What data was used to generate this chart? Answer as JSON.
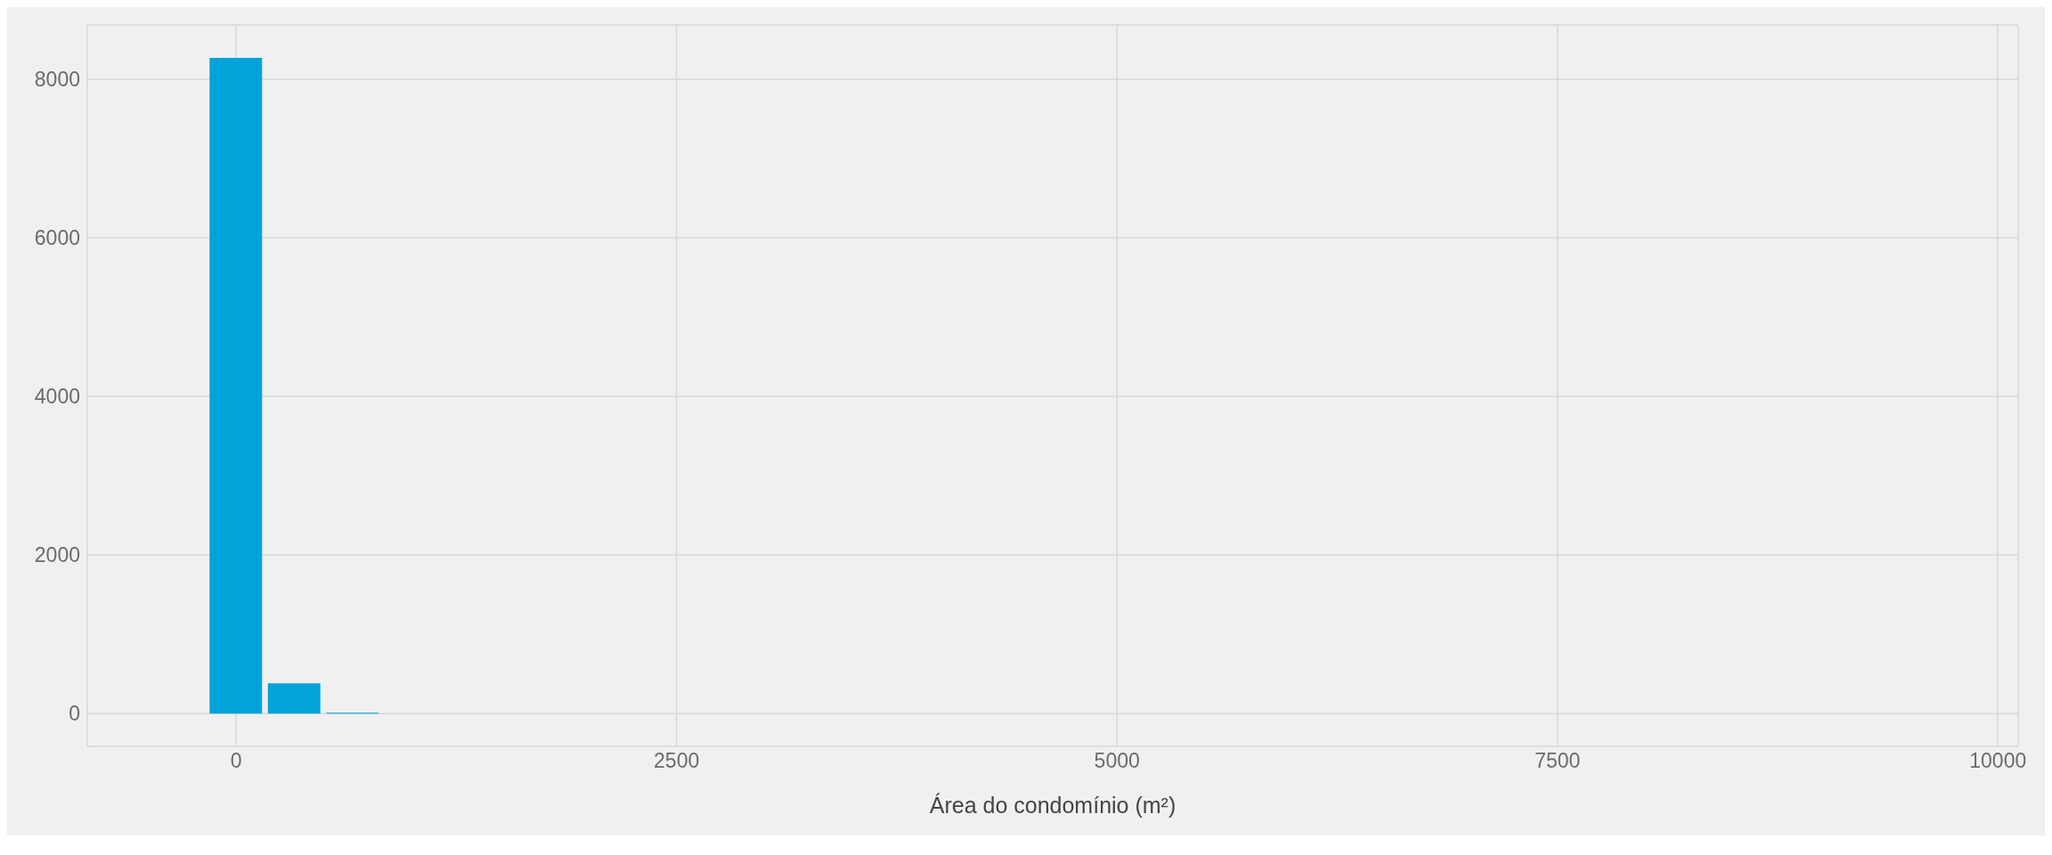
{
  "chart_data": {
    "type": "histogram",
    "xlabel": "Área do condomínio (m²)",
    "color": "#00a3da",
    "bins": [
      -166,
      165,
      496,
      827,
      1158,
      1489,
      1820,
      2151,
      2482,
      2813,
      3144,
      3475,
      3806,
      4137,
      4468,
      4799,
      5130,
      5461,
      5792,
      6123,
      6454,
      6785,
      7116,
      7447,
      7778,
      8109,
      8440,
      8771,
      9102,
      9433,
      9764
    ],
    "values": [
      8270,
      380,
      10,
      0,
      0,
      0,
      0,
      0,
      0,
      0,
      0,
      0,
      0,
      0,
      0,
      0,
      0,
      0,
      0,
      0,
      0,
      0,
      0,
      0,
      0,
      0,
      0,
      0,
      0,
      0
    ],
    "xlim": [
      -845,
      10115
    ],
    "xticks": [
      0,
      2500,
      5000,
      7500,
      10000
    ],
    "ylim": [
      -414,
      8685
    ],
    "yticks": [
      0,
      2000,
      4000,
      6000,
      8000
    ],
    "grid": true
  }
}
